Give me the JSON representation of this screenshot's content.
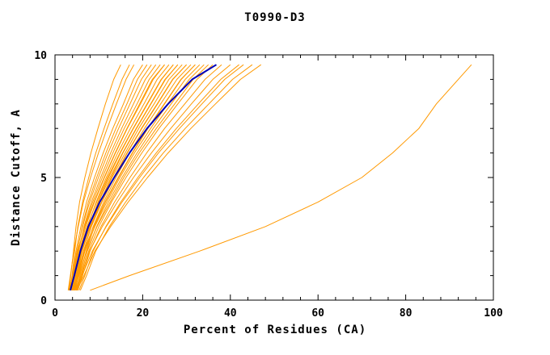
{
  "chart_data": {
    "type": "line",
    "title": "T0990-D3",
    "xlabel": "Percent of Residues (CA)",
    "ylabel": "Distance Cutoff, A",
    "xlim": [
      0,
      100
    ],
    "ylim": [
      0,
      10
    ],
    "x_ticks": [
      0,
      20,
      40,
      60,
      80,
      100
    ],
    "x_minor_step": 4,
    "y_ticks": [
      0,
      5,
      10
    ],
    "y_minor_step": 1,
    "grid": false,
    "legend": "none",
    "colors": {
      "model": "#ff9900",
      "best": "#0000bb",
      "axis": "#000000",
      "background": "#ffffff"
    },
    "y_grid": [
      0.4,
      1,
      2,
      3,
      4,
      5,
      6,
      7,
      8,
      9,
      9.6
    ],
    "series": [
      {
        "name": "model-01",
        "role": "model",
        "x": [
          3.2,
          3.6,
          4.2,
          4.8,
          5.6,
          6.8,
          8.2,
          9.8,
          11.5,
          13.4,
          15.0
        ]
      },
      {
        "name": "model-02",
        "role": "model",
        "x": [
          3.4,
          3.9,
          4.5,
          5.2,
          6.3,
          7.7,
          9.3,
          11.2,
          13.2,
          15.3,
          17.0
        ]
      },
      {
        "name": "model-03",
        "role": "model",
        "x": [
          3.0,
          3.5,
          4.3,
          5.3,
          6.5,
          8.1,
          9.9,
          11.9,
          14.0,
          16.2,
          18.0
        ]
      },
      {
        "name": "model-04",
        "role": "model",
        "x": [
          3.5,
          4.0,
          4.8,
          5.9,
          7.2,
          9.0,
          11.0,
          13.2,
          15.6,
          17.9,
          20.0
        ]
      },
      {
        "name": "model-05",
        "role": "model",
        "x": [
          3.7,
          4.2,
          5.1,
          6.2,
          7.6,
          9.5,
          11.6,
          13.9,
          16.4,
          18.8,
          21.0
        ]
      },
      {
        "name": "model-06",
        "role": "model",
        "x": [
          3.3,
          4.0,
          5.0,
          6.3,
          7.9,
          9.9,
          12.1,
          14.5,
          17.1,
          19.7,
          22.0
        ]
      },
      {
        "name": "model-07",
        "role": "model",
        "x": [
          3.8,
          4.4,
          5.4,
          6.6,
          8.3,
          10.4,
          12.7,
          15.2,
          17.9,
          20.6,
          23.0
        ]
      },
      {
        "name": "model-08",
        "role": "model",
        "x": [
          3.5,
          4.2,
          5.3,
          6.7,
          8.6,
          10.8,
          13.2,
          15.8,
          18.7,
          21.5,
          24.0
        ]
      },
      {
        "name": "model-09",
        "role": "model",
        "x": [
          4.0,
          4.6,
          5.6,
          7.0,
          9.0,
          11.3,
          13.8,
          16.5,
          19.5,
          22.4,
          25.0
        ]
      },
      {
        "name": "model-10",
        "role": "model",
        "x": [
          3.2,
          4.0,
          5.2,
          6.8,
          8.9,
          11.2,
          13.7,
          16.4,
          19.3,
          22.2,
          25.0
        ]
      },
      {
        "name": "model-11",
        "role": "model",
        "x": [
          4.2,
          4.9,
          6.0,
          7.4,
          9.4,
          11.7,
          14.3,
          17.2,
          20.3,
          23.3,
          26.0
        ]
      },
      {
        "name": "model-12",
        "role": "model",
        "x": [
          3.6,
          4.4,
          5.7,
          7.3,
          9.5,
          12.0,
          14.8,
          17.8,
          21.0,
          24.2,
          27.0
        ]
      },
      {
        "name": "model-13",
        "role": "model",
        "x": [
          4.4,
          5.1,
          6.2,
          7.8,
          9.8,
          12.2,
          14.9,
          17.9,
          21.1,
          24.3,
          27.0
        ]
      },
      {
        "name": "model-14",
        "role": "model",
        "x": [
          3.9,
          4.7,
          6.0,
          7.7,
          9.9,
          12.5,
          15.4,
          18.5,
          21.8,
          25.1,
          28.0
        ]
      },
      {
        "name": "model-15",
        "role": "model",
        "x": [
          4.6,
          5.4,
          6.6,
          8.2,
          10.3,
          12.8,
          15.5,
          18.6,
          21.9,
          25.2,
          28.0
        ]
      },
      {
        "name": "model-16",
        "role": "model",
        "x": [
          4.1,
          4.9,
          6.2,
          8.0,
          10.3,
          13.0,
          16.0,
          19.1,
          22.6,
          26.0,
          29.0
        ]
      },
      {
        "name": "model-17",
        "role": "model",
        "x": [
          4.3,
          5.2,
          6.5,
          8.3,
          10.7,
          13.5,
          16.5,
          19.8,
          23.4,
          26.9,
          30.0
        ]
      },
      {
        "name": "model-18",
        "role": "model",
        "x": [
          3.4,
          4.4,
          5.9,
          8.0,
          10.6,
          13.4,
          16.4,
          19.7,
          23.3,
          26.8,
          30.0
        ]
      },
      {
        "name": "model-19",
        "role": "model",
        "x": [
          4.5,
          5.4,
          6.8,
          8.7,
          11.1,
          13.9,
          17.0,
          20.4,
          24.1,
          27.8,
          31.0
        ]
      },
      {
        "name": "model-20",
        "role": "model",
        "x": [
          4.0,
          5.0,
          6.6,
          8.8,
          11.4,
          14.4,
          17.6,
          21.1,
          24.9,
          28.7,
          32.0
        ]
      },
      {
        "name": "model-21",
        "role": "model",
        "x": [
          4.8,
          5.7,
          7.1,
          9.0,
          11.5,
          14.5,
          17.7,
          21.2,
          25.0,
          28.8,
          32.0
        ]
      },
      {
        "name": "model-22",
        "role": "model",
        "x": [
          4.2,
          5.2,
          6.8,
          9.1,
          11.8,
          14.8,
          18.1,
          21.8,
          25.7,
          29.7,
          33.0
        ]
      },
      {
        "name": "model-23",
        "role": "model",
        "x": [
          4.9,
          5.9,
          7.4,
          9.5,
          12.2,
          15.3,
          18.7,
          22.4,
          26.5,
          30.6,
          34.0
        ]
      },
      {
        "name": "model-24",
        "role": "model",
        "x": [
          4.4,
          5.5,
          7.2,
          9.6,
          12.6,
          15.7,
          19.2,
          23.1,
          27.3,
          31.5,
          35.0
        ]
      },
      {
        "name": "model-25",
        "role": "model",
        "x": [
          5.0,
          6.1,
          7.7,
          10.0,
          12.9,
          16.2,
          19.8,
          23.7,
          28.0,
          32.4,
          36.0
        ]
      },
      {
        "name": "model-26",
        "role": "model",
        "x": [
          5.2,
          6.3,
          8.0,
          10.5,
          13.6,
          17.1,
          20.9,
          25.0,
          29.6,
          34.2,
          38.0
        ]
      },
      {
        "name": "model-27",
        "role": "model",
        "x": [
          4.6,
          5.9,
          7.9,
          10.8,
          14.2,
          17.9,
          22.0,
          26.4,
          31.1,
          36.0,
          40.0
        ]
      },
      {
        "name": "model-28",
        "role": "model",
        "x": [
          5.5,
          6.8,
          8.7,
          11.6,
          15.0,
          18.9,
          23.1,
          27.7,
          32.7,
          37.8,
          42.0
        ]
      },
      {
        "name": "model-29",
        "role": "model",
        "x": [
          4.8,
          6.2,
          8.5,
          11.7,
          15.3,
          19.3,
          23.6,
          28.4,
          33.5,
          38.7,
          43.0
        ]
      },
      {
        "name": "model-30",
        "role": "model",
        "x": [
          5.8,
          7.2,
          9.3,
          12.4,
          16.1,
          20.2,
          24.7,
          29.7,
          35.1,
          40.5,
          45.0
        ]
      },
      {
        "name": "model-31",
        "role": "model",
        "x": [
          5.0,
          6.6,
          9.1,
          12.7,
          16.7,
          21.1,
          25.8,
          31.0,
          36.6,
          42.3,
          47.0
        ]
      },
      {
        "name": "model-outlier",
        "role": "model",
        "x": [
          8.0,
          17.0,
          33.0,
          48.0,
          60.0,
          70.0,
          77.0,
          83.0,
          87.0,
          92.0,
          95.0
        ]
      },
      {
        "name": "best-model",
        "role": "best",
        "x": [
          3.5,
          4.4,
          5.8,
          7.6,
          10.2,
          13.5,
          17.0,
          21.0,
          25.8,
          31.3,
          36.8
        ]
      }
    ]
  }
}
